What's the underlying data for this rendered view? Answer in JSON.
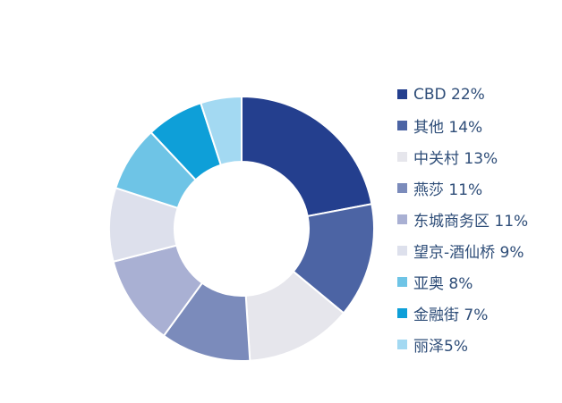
{
  "chart_data": {
    "type": "pie",
    "donut": true,
    "title": "",
    "legend_position": "right",
    "slices": [
      {
        "label": "CBD 22%",
        "name": "CBD",
        "value": 22,
        "color": "#243f8e"
      },
      {
        "label": "其他 14%",
        "name": "其他",
        "value": 14,
        "color": "#4c64a4"
      },
      {
        "label": "中关村 13%",
        "name": "中关村",
        "value": 13,
        "color": "#e6e6ec"
      },
      {
        "label": "燕莎 11%",
        "name": "燕莎",
        "value": 11,
        "color": "#7b8bbb"
      },
      {
        "label": "东城商务区 11%",
        "name": "东城商务区",
        "value": 11,
        "color": "#a9b0d3"
      },
      {
        "label": "望京-酒仙桥 9%",
        "name": "望京-酒仙桥",
        "value": 9,
        "color": "#dde0ec"
      },
      {
        "label": "亚奥 8%",
        "name": "亚奥",
        "value": 8,
        "color": "#6ec4e6"
      },
      {
        "label": "金融街 7%",
        "name": "金融街",
        "value": 7,
        "color": "#0e9fd8"
      },
      {
        "label": "丽泽5%",
        "name": "丽泽",
        "value": 5,
        "color": "#a3d9f2"
      }
    ]
  }
}
